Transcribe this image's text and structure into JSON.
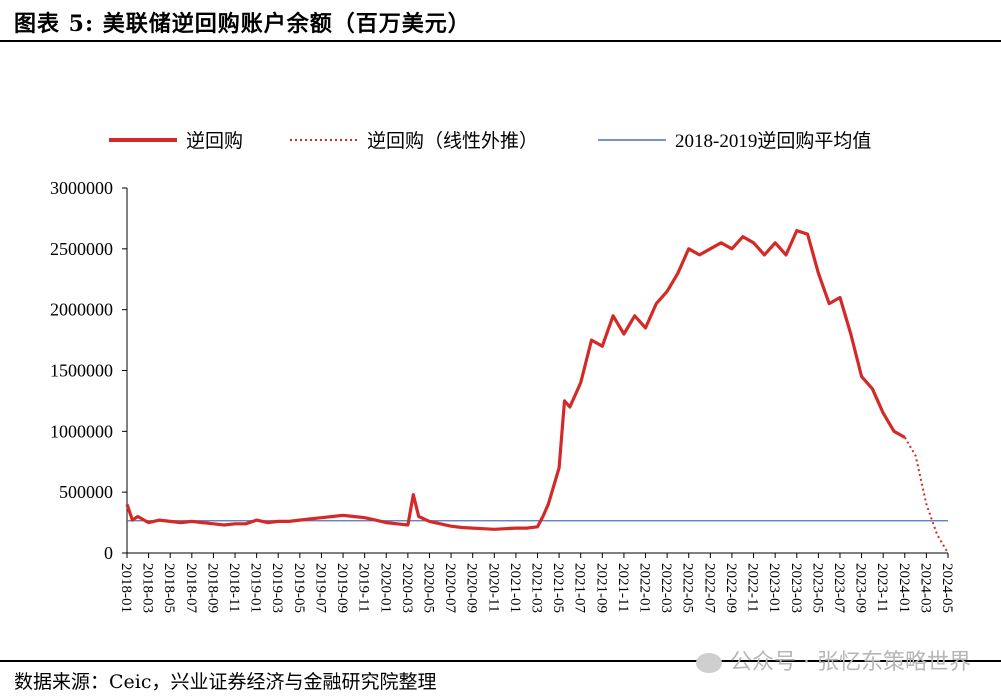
{
  "header": {
    "title": "图表 5:  美联储逆回购账户余额（百万美元）"
  },
  "footer": {
    "source": "数据来源：Ceic，兴业证券经济与金融研究院整理",
    "watermark": "公众号 · 张忆东策略世界"
  },
  "chart_data": {
    "type": "line",
    "legend_position": "top",
    "grid": false,
    "ylim": [
      0,
      3000000
    ],
    "y_ticks": [
      0,
      500000,
      1000000,
      1500000,
      2000000,
      2500000,
      3000000
    ],
    "y_tick_labels": [
      "0",
      "500000",
      "1000000",
      "1500000",
      "2000000",
      "2500000",
      "3000000"
    ],
    "x_tick_labels": [
      "2018-01",
      "2018-03",
      "2018-05",
      "2018-07",
      "2018-09",
      "2018-11",
      "2019-01",
      "2019-03",
      "2019-05",
      "2019-07",
      "2019-09",
      "2019-11",
      "2020-01",
      "2020-03",
      "2020-05",
      "2020-07",
      "2020-09",
      "2020-11",
      "2021-01",
      "2021-03",
      "2021-05",
      "2021-07",
      "2021-09",
      "2021-11",
      "2022-01",
      "2022-03",
      "2022-05",
      "2022-07",
      "2022-09",
      "2022-11",
      "2023-01",
      "2023-03",
      "2023-05",
      "2023-07",
      "2023-09",
      "2023-11",
      "2024-01",
      "2024-03",
      "2024-05"
    ],
    "colors": {
      "main": "#d42a27",
      "avg": "#4f6fbf"
    },
    "series": [
      {
        "name": "逆回购",
        "style": "solid",
        "points": [
          [
            "2018-01",
            400000
          ],
          [
            "2018-01.5",
            270000
          ],
          [
            "2018-02",
            300000
          ],
          [
            "2018-03",
            250000
          ],
          [
            "2018-04",
            270000
          ],
          [
            "2018-05",
            260000
          ],
          [
            "2018-06",
            250000
          ],
          [
            "2018-07",
            260000
          ],
          [
            "2018-08",
            250000
          ],
          [
            "2018-09",
            240000
          ],
          [
            "2018-10",
            230000
          ],
          [
            "2018-11",
            240000
          ],
          [
            "2018-12",
            240000
          ],
          [
            "2019-01",
            270000
          ],
          [
            "2019-02",
            250000
          ],
          [
            "2019-03",
            260000
          ],
          [
            "2019-04",
            260000
          ],
          [
            "2019-05",
            270000
          ],
          [
            "2019-06",
            280000
          ],
          [
            "2019-07",
            290000
          ],
          [
            "2019-08",
            300000
          ],
          [
            "2019-09",
            310000
          ],
          [
            "2019-10",
            300000
          ],
          [
            "2019-11",
            290000
          ],
          [
            "2019-12",
            270000
          ],
          [
            "2020-01",
            250000
          ],
          [
            "2020-02",
            240000
          ],
          [
            "2020-03",
            230000
          ],
          [
            "2020-03.5",
            480000
          ],
          [
            "2020-04",
            300000
          ],
          [
            "2020-05",
            260000
          ],
          [
            "2020-06",
            240000
          ],
          [
            "2020-07",
            220000
          ],
          [
            "2020-08",
            210000
          ],
          [
            "2020-09",
            205000
          ],
          [
            "2020-10",
            200000
          ],
          [
            "2020-11",
            195000
          ],
          [
            "2020-12",
            200000
          ],
          [
            "2021-01",
            205000
          ],
          [
            "2021-02",
            205000
          ],
          [
            "2021-03",
            215000
          ],
          [
            "2021-03.5",
            300000
          ],
          [
            "2021-04",
            400000
          ],
          [
            "2021-05",
            700000
          ],
          [
            "2021-05.5",
            1250000
          ],
          [
            "2021-06",
            1200000
          ],
          [
            "2021-07",
            1400000
          ],
          [
            "2021-08",
            1750000
          ],
          [
            "2021-09",
            1700000
          ],
          [
            "2021-10",
            1950000
          ],
          [
            "2021-11",
            1800000
          ],
          [
            "2021-12",
            1950000
          ],
          [
            "2022-01",
            1850000
          ],
          [
            "2022-02",
            2050000
          ],
          [
            "2022-03",
            2150000
          ],
          [
            "2022-04",
            2300000
          ],
          [
            "2022-05",
            2500000
          ],
          [
            "2022-06",
            2450000
          ],
          [
            "2022-07",
            2500000
          ],
          [
            "2022-08",
            2550000
          ],
          [
            "2022-09",
            2500000
          ],
          [
            "2022-10",
            2600000
          ],
          [
            "2022-11",
            2550000
          ],
          [
            "2022-12",
            2450000
          ],
          [
            "2023-01",
            2550000
          ],
          [
            "2023-02",
            2450000
          ],
          [
            "2023-03",
            2650000
          ],
          [
            "2023-04",
            2620000
          ],
          [
            "2023-05",
            2300000
          ],
          [
            "2023-06",
            2050000
          ],
          [
            "2023-07",
            2100000
          ],
          [
            "2023-08",
            1800000
          ],
          [
            "2023-09",
            1450000
          ],
          [
            "2023-10",
            1350000
          ],
          [
            "2023-11",
            1150000
          ],
          [
            "2023-12",
            1000000
          ],
          [
            "2024-01",
            950000
          ]
        ]
      },
      {
        "name": "逆回购（线性外推）",
        "style": "dotted",
        "points": [
          [
            "2024-01",
            950000
          ],
          [
            "2024-02",
            800000
          ],
          [
            "2024-03",
            400000
          ],
          [
            "2024-04",
            150000
          ],
          [
            "2024-05",
            0
          ]
        ]
      },
      {
        "name": "2018-2019逆回购平均值",
        "style": "solid-thin",
        "value": 265000
      }
    ]
  }
}
